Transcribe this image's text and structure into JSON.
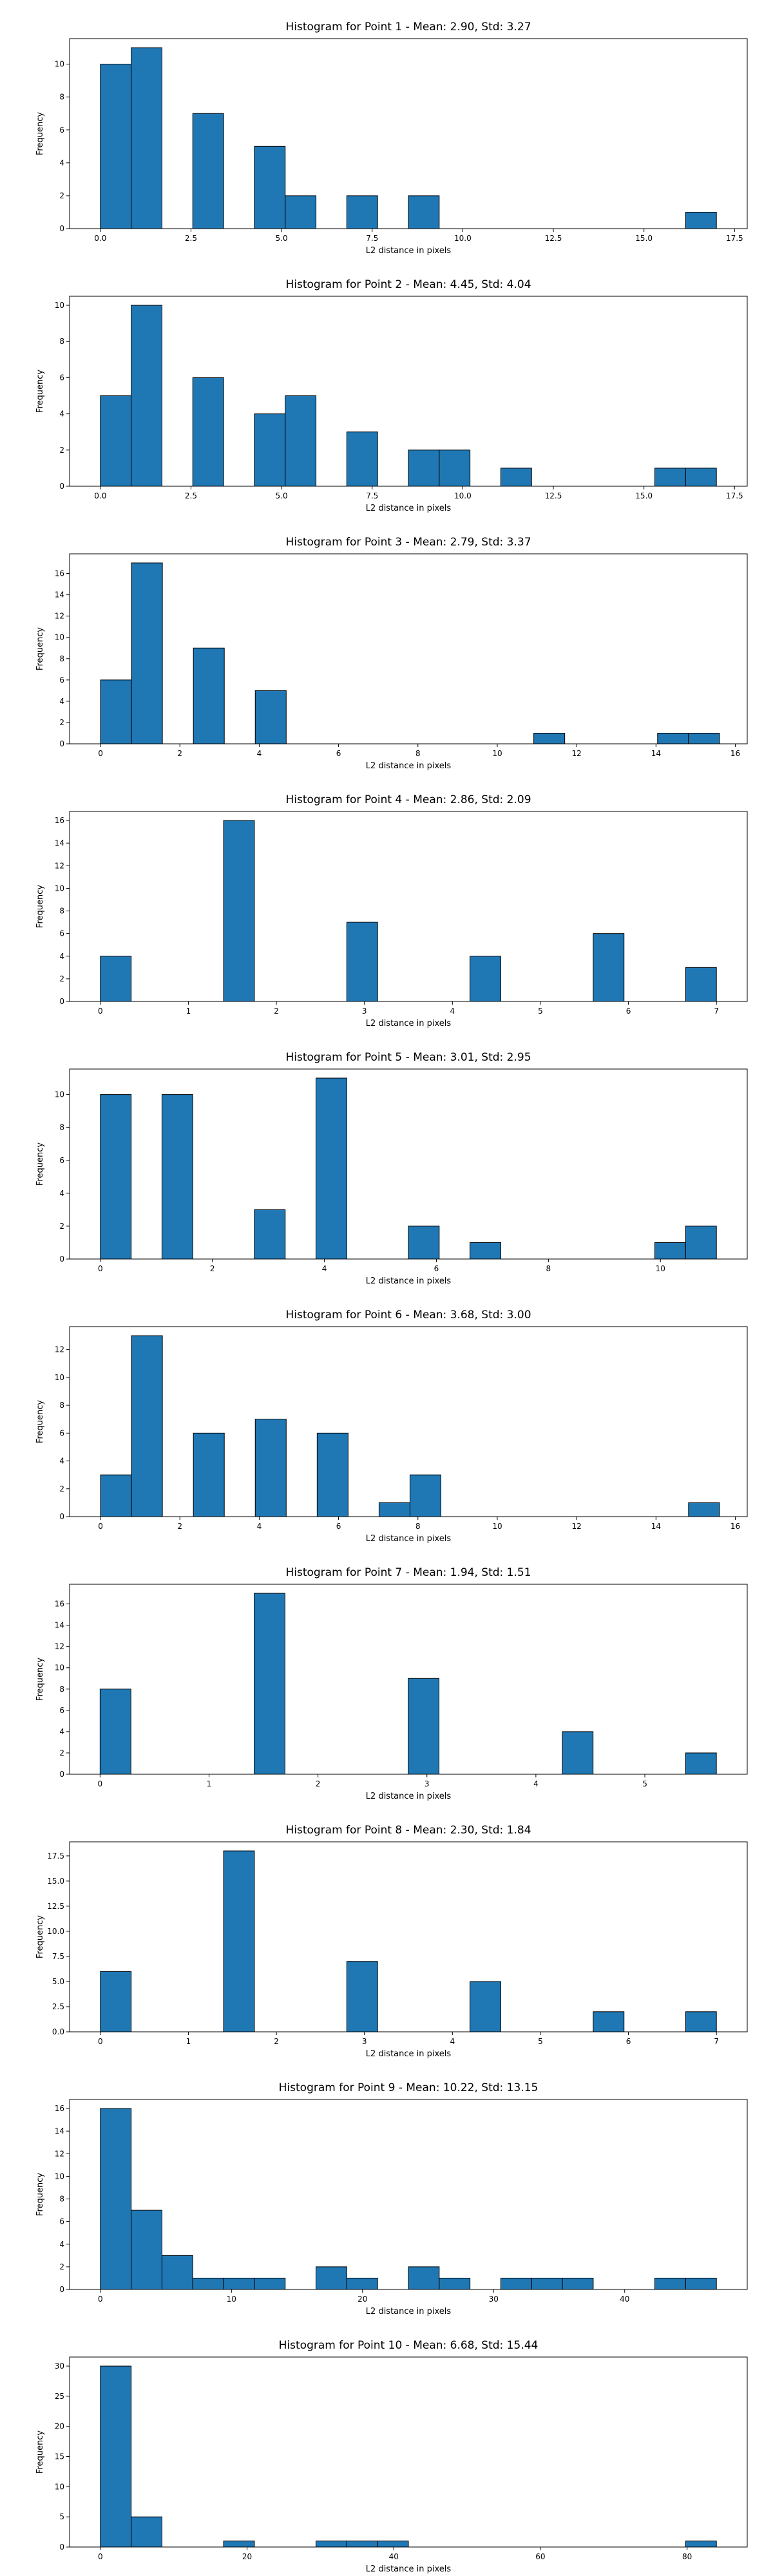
{
  "chart_data": [
    {
      "type": "bar",
      "title": "Histogram for Point 1 - Mean: 2.90, Std: 3.27",
      "xlabel": "L2 distance in pixels",
      "ylabel": "Frequency",
      "xlim": [
        -0.85,
        17.85
      ],
      "ylim": [
        0,
        11.55
      ],
      "xticks": [
        0.0,
        2.5,
        5.0,
        7.5,
        10.0,
        12.5,
        15.0,
        17.5
      ],
      "xticklabels": [
        "0.0",
        "2.5",
        "5.0",
        "7.5",
        "10.0",
        "12.5",
        "15.0",
        "17.5"
      ],
      "yticks": [
        0,
        2,
        4,
        6,
        8,
        10
      ],
      "yticklabels": [
        "0",
        "2",
        "4",
        "6",
        "8",
        "10"
      ],
      "bins": [
        {
          "x0": 0.0,
          "x1": 0.85,
          "count": 10
        },
        {
          "x0": 0.85,
          "x1": 1.7,
          "count": 11
        },
        {
          "x0": 2.55,
          "x1": 3.4,
          "count": 7
        },
        {
          "x0": 4.25,
          "x1": 5.1,
          "count": 5
        },
        {
          "x0": 5.1,
          "x1": 5.95,
          "count": 2
        },
        {
          "x0": 6.8,
          "x1": 7.65,
          "count": 2
        },
        {
          "x0": 8.5,
          "x1": 9.35,
          "count": 2
        },
        {
          "x0": 16.15,
          "x1": 17.0,
          "count": 1
        }
      ]
    },
    {
      "type": "bar",
      "title": "Histogram for Point 2 - Mean: 4.45, Std: 4.04",
      "xlabel": "L2 distance in pixels",
      "ylabel": "Frequency",
      "xlim": [
        -0.85,
        17.85
      ],
      "ylim": [
        0,
        10.5
      ],
      "xticks": [
        0.0,
        2.5,
        5.0,
        7.5,
        10.0,
        12.5,
        15.0,
        17.5
      ],
      "xticklabels": [
        "0.0",
        "2.5",
        "5.0",
        "7.5",
        "10.0",
        "12.5",
        "15.0",
        "17.5"
      ],
      "yticks": [
        0,
        2,
        4,
        6,
        8,
        10
      ],
      "yticklabels": [
        "0",
        "2",
        "4",
        "6",
        "8",
        "10"
      ],
      "bins": [
        {
          "x0": 0.0,
          "x1": 0.85,
          "count": 5
        },
        {
          "x0": 0.85,
          "x1": 1.7,
          "count": 10
        },
        {
          "x0": 2.55,
          "x1": 3.4,
          "count": 6
        },
        {
          "x0": 4.25,
          "x1": 5.1,
          "count": 4
        },
        {
          "x0": 5.1,
          "x1": 5.95,
          "count": 5
        },
        {
          "x0": 6.8,
          "x1": 7.65,
          "count": 3
        },
        {
          "x0": 8.5,
          "x1": 9.35,
          "count": 2
        },
        {
          "x0": 9.35,
          "x1": 10.2,
          "count": 2
        },
        {
          "x0": 11.05,
          "x1": 11.9,
          "count": 1
        },
        {
          "x0": 15.3,
          "x1": 16.15,
          "count": 1
        },
        {
          "x0": 16.15,
          "x1": 17.0,
          "count": 1
        }
      ]
    },
    {
      "type": "bar",
      "title": "Histogram for Point 3 - Mean: 2.79, Std: 3.37",
      "xlabel": "L2 distance in pixels",
      "ylabel": "Frequency",
      "xlim": [
        -0.78,
        16.3
      ],
      "ylim": [
        0,
        17.85
      ],
      "xticks": [
        0,
        2,
        4,
        6,
        8,
        10,
        12,
        14,
        16
      ],
      "xticklabels": [
        "0",
        "2",
        "4",
        "6",
        "8",
        "10",
        "12",
        "14",
        "16"
      ],
      "yticks": [
        0,
        2,
        4,
        6,
        8,
        10,
        12,
        14,
        16
      ],
      "yticklabels": [
        "0",
        "2",
        "4",
        "6",
        "8",
        "10",
        "12",
        "14",
        "16"
      ],
      "bins": [
        {
          "x0": 0.0,
          "x1": 0.78,
          "count": 6
        },
        {
          "x0": 0.78,
          "x1": 1.56,
          "count": 17
        },
        {
          "x0": 2.34,
          "x1": 3.12,
          "count": 9
        },
        {
          "x0": 3.9,
          "x1": 4.68,
          "count": 5
        },
        {
          "x0": 10.92,
          "x1": 11.7,
          "count": 1
        },
        {
          "x0": 14.04,
          "x1": 14.82,
          "count": 1
        },
        {
          "x0": 14.82,
          "x1": 15.6,
          "count": 1
        }
      ]
    },
    {
      "type": "bar",
      "title": "Histogram for Point 4 - Mean: 2.86, Std: 2.09",
      "xlabel": "L2 distance in pixels",
      "ylabel": "Frequency",
      "xlim": [
        -0.35,
        7.35
      ],
      "ylim": [
        0,
        16.8
      ],
      "xticks": [
        0,
        1,
        2,
        3,
        4,
        5,
        6,
        7
      ],
      "xticklabels": [
        "0",
        "1",
        "2",
        "3",
        "4",
        "5",
        "6",
        "7"
      ],
      "yticks": [
        0,
        2,
        4,
        6,
        8,
        10,
        12,
        14,
        16
      ],
      "yticklabels": [
        "0",
        "2",
        "4",
        "6",
        "8",
        "10",
        "12",
        "14",
        "16"
      ],
      "bins": [
        {
          "x0": 0.0,
          "x1": 0.35,
          "count": 4
        },
        {
          "x0": 1.4,
          "x1": 1.75,
          "count": 16
        },
        {
          "x0": 2.8,
          "x1": 3.15,
          "count": 7
        },
        {
          "x0": 4.2,
          "x1": 4.55,
          "count": 4
        },
        {
          "x0": 5.6,
          "x1": 5.95,
          "count": 6
        },
        {
          "x0": 6.65,
          "x1": 7.0,
          "count": 3
        }
      ]
    },
    {
      "type": "bar",
      "title": "Histogram for Point 5 - Mean: 3.01, Std: 2.95",
      "xlabel": "L2 distance in pixels",
      "ylabel": "Frequency",
      "xlim": [
        -0.55,
        11.55
      ],
      "ylim": [
        0,
        11.55
      ],
      "xticks": [
        0,
        2,
        4,
        6,
        8,
        10
      ],
      "xticklabels": [
        "0",
        "2",
        "4",
        "6",
        "8",
        "10"
      ],
      "yticks": [
        0,
        2,
        4,
        6,
        8,
        10
      ],
      "yticklabels": [
        "0",
        "2",
        "4",
        "6",
        "8",
        "10"
      ],
      "bins": [
        {
          "x0": 0.0,
          "x1": 0.55,
          "count": 10
        },
        {
          "x0": 1.1,
          "x1": 1.65,
          "count": 10
        },
        {
          "x0": 2.75,
          "x1": 3.3,
          "count": 3
        },
        {
          "x0": 3.85,
          "x1": 4.4,
          "count": 11
        },
        {
          "x0": 5.5,
          "x1": 6.05,
          "count": 2
        },
        {
          "x0": 6.6,
          "x1": 7.15,
          "count": 1
        },
        {
          "x0": 9.9,
          "x1": 10.45,
          "count": 1
        },
        {
          "x0": 10.45,
          "x1": 11.0,
          "count": 2
        }
      ]
    },
    {
      "type": "bar",
      "title": "Histogram for Point 6 - Mean: 3.68, Std: 3.00",
      "xlabel": "L2 distance in pixels",
      "ylabel": "Frequency",
      "xlim": [
        -0.78,
        16.3
      ],
      "ylim": [
        0,
        13.65
      ],
      "xticks": [
        0,
        2,
        4,
        6,
        8,
        10,
        12,
        14,
        16
      ],
      "xticklabels": [
        "0",
        "2",
        "4",
        "6",
        "8",
        "10",
        "12",
        "14",
        "16"
      ],
      "yticks": [
        0,
        2,
        4,
        6,
        8,
        10,
        12
      ],
      "yticklabels": [
        "0",
        "2",
        "4",
        "6",
        "8",
        "10",
        "12"
      ],
      "bins": [
        {
          "x0": 0.0,
          "x1": 0.78,
          "count": 3
        },
        {
          "x0": 0.78,
          "x1": 1.56,
          "count": 13
        },
        {
          "x0": 2.34,
          "x1": 3.12,
          "count": 6
        },
        {
          "x0": 3.9,
          "x1": 4.68,
          "count": 7
        },
        {
          "x0": 5.46,
          "x1": 6.24,
          "count": 6
        },
        {
          "x0": 7.02,
          "x1": 7.8,
          "count": 1
        },
        {
          "x0": 7.8,
          "x1": 8.58,
          "count": 3
        },
        {
          "x0": 14.82,
          "x1": 15.6,
          "count": 1
        }
      ]
    },
    {
      "type": "bar",
      "title": "Histogram for Point 7 - Mean: 1.94, Std: 1.51",
      "xlabel": "L2 distance in pixels",
      "ylabel": "Frequency",
      "xlim": [
        -0.28,
        5.94
      ],
      "ylim": [
        0,
        17.85
      ],
      "xticks": [
        0,
        1,
        2,
        3,
        4,
        5
      ],
      "xticklabels": [
        "0",
        "1",
        "2",
        "3",
        "4",
        "5"
      ],
      "yticks": [
        0,
        2,
        4,
        6,
        8,
        10,
        12,
        14,
        16
      ],
      "yticklabels": [
        "0",
        "2",
        "4",
        "6",
        "8",
        "10",
        "12",
        "14",
        "16"
      ],
      "bins": [
        {
          "x0": 0.0,
          "x1": 0.283,
          "count": 8
        },
        {
          "x0": 1.414,
          "x1": 1.697,
          "count": 17
        },
        {
          "x0": 2.828,
          "x1": 3.111,
          "count": 9
        },
        {
          "x0": 4.243,
          "x1": 4.525,
          "count": 4
        },
        {
          "x0": 5.374,
          "x1": 5.657,
          "count": 2
        }
      ]
    },
    {
      "type": "bar",
      "title": "Histogram for Point 8 - Mean: 2.30, Std: 1.84",
      "xlabel": "L2 distance in pixels",
      "ylabel": "Frequency",
      "xlim": [
        -0.35,
        7.35
      ],
      "ylim": [
        0,
        18.9
      ],
      "xticks": [
        0,
        1,
        2,
        3,
        4,
        5,
        6,
        7
      ],
      "xticklabels": [
        "0",
        "1",
        "2",
        "3",
        "4",
        "5",
        "6",
        "7"
      ],
      "yticks": [
        0,
        2.5,
        5,
        7.5,
        10,
        12.5,
        15,
        17.5
      ],
      "yticklabels": [
        "0.0",
        "2.5",
        "5.0",
        "7.5",
        "10.0",
        "12.5",
        "15.0",
        "17.5"
      ],
      "bins": [
        {
          "x0": 0.0,
          "x1": 0.35,
          "count": 6
        },
        {
          "x0": 1.4,
          "x1": 1.75,
          "count": 18
        },
        {
          "x0": 2.8,
          "x1": 3.15,
          "count": 7
        },
        {
          "x0": 4.2,
          "x1": 4.55,
          "count": 5
        },
        {
          "x0": 5.6,
          "x1": 5.95,
          "count": 2
        },
        {
          "x0": 6.65,
          "x1": 7.0,
          "count": 2
        }
      ]
    },
    {
      "type": "bar",
      "title": "Histogram for Point 9 - Mean: 10.22, Std: 13.15",
      "xlabel": "L2 distance in pixels",
      "ylabel": "Frequency",
      "xlim": [
        -2.35,
        49.35
      ],
      "ylim": [
        0,
        16.8
      ],
      "xticks": [
        0,
        10,
        20,
        30,
        40
      ],
      "xticklabels": [
        "0",
        "10",
        "20",
        "30",
        "40"
      ],
      "yticks": [
        0,
        2,
        4,
        6,
        8,
        10,
        12,
        14,
        16
      ],
      "yticklabels": [
        "0",
        "2",
        "4",
        "6",
        "8",
        "10",
        "12",
        "14",
        "16"
      ],
      "bins": [
        {
          "x0": 0.0,
          "x1": 2.35,
          "count": 16
        },
        {
          "x0": 2.35,
          "x1": 4.7,
          "count": 7
        },
        {
          "x0": 4.7,
          "x1": 7.05,
          "count": 3
        },
        {
          "x0": 7.05,
          "x1": 9.4,
          "count": 1
        },
        {
          "x0": 9.4,
          "x1": 11.75,
          "count": 1
        },
        {
          "x0": 11.75,
          "x1": 14.1,
          "count": 1
        },
        {
          "x0": 16.45,
          "x1": 18.8,
          "count": 2
        },
        {
          "x0": 18.8,
          "x1": 21.15,
          "count": 1
        },
        {
          "x0": 23.5,
          "x1": 25.85,
          "count": 2
        },
        {
          "x0": 25.85,
          "x1": 28.2,
          "count": 1
        },
        {
          "x0": 30.55,
          "x1": 32.9,
          "count": 1
        },
        {
          "x0": 32.9,
          "x1": 35.25,
          "count": 1
        },
        {
          "x0": 35.25,
          "x1": 37.6,
          "count": 1
        },
        {
          "x0": 42.3,
          "x1": 44.65,
          "count": 1
        },
        {
          "x0": 44.65,
          "x1": 47.0,
          "count": 1
        }
      ]
    },
    {
      "type": "bar",
      "title": "Histogram for Point 10 - Mean: 6.68, Std: 15.44",
      "xlabel": "L2 distance in pixels",
      "ylabel": "Frequency",
      "xlim": [
        -4.2,
        88.2
      ],
      "ylim": [
        0,
        31.5
      ],
      "xticks": [
        0,
        20,
        40,
        60,
        80
      ],
      "xticklabels": [
        "0",
        "20",
        "40",
        "60",
        "80"
      ],
      "yticks": [
        0,
        5,
        10,
        15,
        20,
        25,
        30
      ],
      "yticklabels": [
        "0",
        "5",
        "10",
        "15",
        "20",
        "25",
        "30"
      ],
      "bins": [
        {
          "x0": 0.0,
          "x1": 4.2,
          "count": 30
        },
        {
          "x0": 4.2,
          "x1": 8.4,
          "count": 5
        },
        {
          "x0": 16.8,
          "x1": 21.0,
          "count": 1
        },
        {
          "x0": 29.4,
          "x1": 33.6,
          "count": 1
        },
        {
          "x0": 33.6,
          "x1": 37.8,
          "count": 1
        },
        {
          "x0": 37.8,
          "x1": 42.0,
          "count": 1
        },
        {
          "x0": 79.8,
          "x1": 84.0,
          "count": 1
        }
      ]
    }
  ]
}
